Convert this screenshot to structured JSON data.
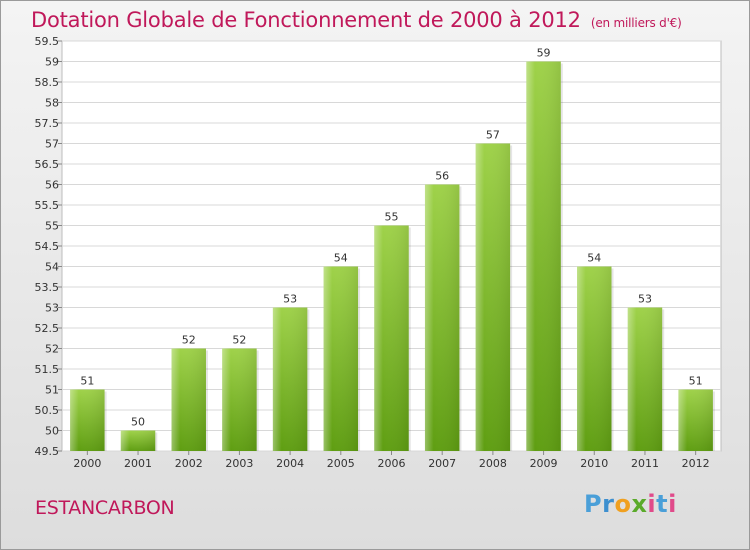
{
  "header": {
    "title": "Dotation Globale de Fonctionnement de 2000 à 2012",
    "unit": "(en milliers d'€)"
  },
  "footer": {
    "commune": "ESTANCARBON",
    "logo": "Proxiti"
  },
  "chart_data": {
    "type": "bar",
    "title": "Dotation Globale de Fonctionnement de 2000 à 2012",
    "subtitle": "(en milliers d'€)",
    "xlabel": "",
    "ylabel": "",
    "categories": [
      "2000",
      "2001",
      "2002",
      "2003",
      "2004",
      "2005",
      "2006",
      "2007",
      "2008",
      "2009",
      "2010",
      "2011",
      "2012"
    ],
    "values": [
      51,
      50,
      52,
      52,
      53,
      54,
      55,
      56,
      57,
      59,
      54,
      53,
      51
    ],
    "ylim": [
      49.5,
      59.5
    ],
    "yticks": [
      "49.5",
      "50",
      "50.5",
      "51",
      "51.5",
      "52",
      "52.5",
      "53",
      "53.5",
      "54",
      "54.5",
      "55",
      "55.5",
      "56",
      "56.5",
      "57",
      "57.5",
      "58",
      "58.5",
      "59",
      "59.5"
    ],
    "grid": true,
    "bar_color": "#7cb832",
    "label_color": "#c0185a"
  }
}
